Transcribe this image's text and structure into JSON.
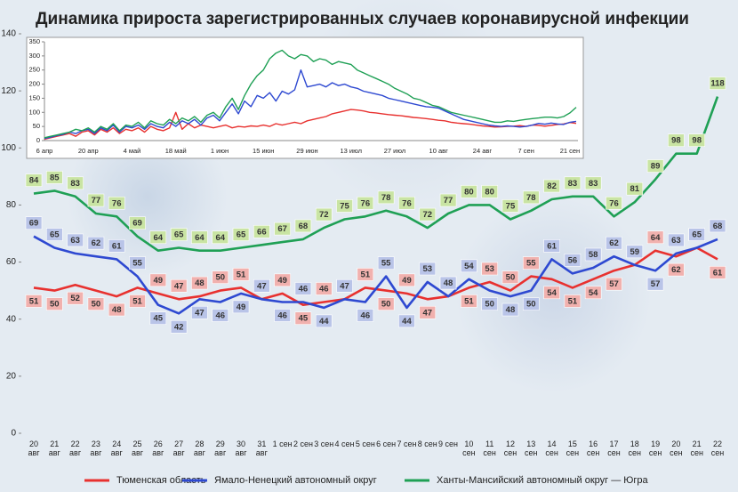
{
  "chart_data": [
    {
      "type": "line",
      "title": "Динамика прироста зарегистрированных случаев коронавирусной инфекции",
      "categories": [
        "20 авг",
        "21 авг",
        "22 авг",
        "23 авг",
        "24 авг",
        "25 авг",
        "26 авг",
        "27 авг",
        "28 авг",
        "29 авг",
        "30 авг",
        "31 авг",
        "1 сен",
        "2 сен",
        "3 сен",
        "4 сен",
        "5 сен",
        "6 сен",
        "7 сен",
        "8 сен",
        "9 сен",
        "10 сен",
        "11 сен",
        "12 сен",
        "13 сен",
        "14 сен",
        "15 сен",
        "16 сен",
        "17 сен",
        "18 сен",
        "19 сен",
        "20 сен",
        "21 сен",
        "22 сен"
      ],
      "series": [
        {
          "name": "Тюменская область",
          "color": "#e8312f",
          "label_color": "#f1b1ae",
          "values": [
            51,
            50,
            52,
            50,
            48,
            51,
            49,
            47,
            48,
            50,
            51,
            47,
            49,
            45,
            46,
            47,
            51,
            50,
            49,
            47,
            48,
            51,
            53,
            50,
            55,
            54,
            51,
            54,
            57,
            59,
            64,
            62,
            65,
            61
          ]
        },
        {
          "name": "Ямало-Ненецкий автономный округ",
          "color": "#2e49d1",
          "label_color": "#b9c4e8",
          "values": [
            69,
            65,
            63,
            62,
            61,
            55,
            45,
            42,
            47,
            46,
            49,
            47,
            46,
            46,
            44,
            47,
            46,
            55,
            44,
            53,
            48,
            54,
            50,
            48,
            50,
            61,
            56,
            58,
            62,
            59,
            57,
            63,
            65,
            68
          ]
        },
        {
          "name": "Ханты-Мансийский автономный округ — Югра",
          "color": "#1fa055",
          "label_color": "#c9e4a3",
          "values": [
            84,
            85,
            83,
            77,
            76,
            69,
            64,
            65,
            64,
            64,
            65,
            66,
            67,
            68,
            72,
            75,
            76,
            78,
            76,
            72,
            77,
            80,
            80,
            75,
            78,
            82,
            83,
            83,
            76,
            81,
            89,
            98,
            98,
            118
          ]
        }
      ],
      "ylim": [
        0,
        140
      ],
      "yticks": [
        0,
        20,
        40,
        60,
        80,
        100,
        120,
        140
      ],
      "data_labels": true,
      "grid": false,
      "legend": "bottom"
    },
    {
      "type": "line",
      "categories": [
        "6 апр",
        null,
        null,
        null,
        null,
        null,
        null,
        "20 апр",
        null,
        null,
        null,
        null,
        null,
        null,
        "4 май",
        null,
        null,
        null,
        null,
        null,
        null,
        "18 май",
        null,
        null,
        null,
        null,
        null,
        null,
        "1 июн",
        null,
        null,
        null,
        null,
        null,
        null,
        "15 июн",
        null,
        null,
        null,
        null,
        null,
        null,
        "29 июн",
        null,
        null,
        null,
        null,
        null,
        null,
        "13 июл",
        null,
        null,
        null,
        null,
        null,
        null,
        "27 июл",
        null,
        null,
        null,
        null,
        null,
        null,
        "10 авг",
        null,
        null,
        null,
        null,
        null,
        null,
        "24 авг",
        null,
        null,
        null,
        null,
        null,
        null,
        "7 сен",
        null,
        null,
        null,
        null,
        null,
        null,
        "21 сен",
        null
      ],
      "series": [
        {
          "color": "#e8312f",
          "values": [
            5,
            10,
            15,
            20,
            25,
            15,
            30,
            35,
            20,
            40,
            30,
            45,
            25,
            40,
            35,
            45,
            30,
            50,
            40,
            35,
            45,
            100,
            40,
            60,
            45,
            55,
            50,
            45,
            50,
            55,
            45,
            50,
            48,
            52,
            50,
            55,
            50,
            60,
            55,
            60,
            65,
            60,
            70,
            75,
            80,
            85,
            95,
            100,
            105,
            110,
            108,
            105,
            100,
            98,
            95,
            92,
            90,
            88,
            85,
            82,
            80,
            78,
            75,
            72,
            70,
            65,
            62,
            60,
            58,
            55,
            52,
            50,
            48,
            49,
            50,
            51,
            53,
            50,
            55,
            54,
            51,
            54,
            57,
            59,
            64,
            61
          ]
        },
        {
          "color": "#2e49d1",
          "values": [
            8,
            12,
            18,
            22,
            30,
            25,
            35,
            40,
            25,
            45,
            35,
            55,
            30,
            50,
            45,
            55,
            40,
            60,
            50,
            45,
            65,
            50,
            70,
            60,
            75,
            55,
            80,
            90,
            70,
            100,
            130,
            95,
            140,
            120,
            160,
            150,
            170,
            140,
            175,
            165,
            180,
            250,
            190,
            195,
            200,
            190,
            205,
            195,
            200,
            190,
            185,
            175,
            170,
            165,
            160,
            150,
            145,
            140,
            135,
            130,
            125,
            120,
            118,
            115,
            105,
            95,
            85,
            75,
            70,
            65,
            60,
            55,
            52,
            50,
            52,
            50,
            48,
            50,
            55,
            61,
            58,
            62,
            59,
            57,
            65,
            68
          ]
        },
        {
          "color": "#1fa055",
          "values": [
            10,
            15,
            20,
            25,
            30,
            40,
            35,
            45,
            30,
            50,
            40,
            60,
            35,
            55,
            50,
            65,
            45,
            70,
            60,
            55,
            75,
            60,
            80,
            70,
            85,
            65,
            90,
            100,
            80,
            120,
            150,
            110,
            160,
            200,
            230,
            250,
            290,
            310,
            320,
            300,
            290,
            305,
            300,
            280,
            290,
            285,
            270,
            280,
            275,
            270,
            250,
            240,
            230,
            220,
            210,
            200,
            185,
            175,
            165,
            150,
            145,
            135,
            125,
            120,
            110,
            100,
            95,
            90,
            85,
            80,
            75,
            70,
            65,
            65,
            70,
            68,
            72,
            75,
            78,
            80,
            83,
            83,
            80,
            85,
            98,
            118
          ]
        }
      ],
      "ylim": [
        0,
        350
      ],
      "yticks": [
        0,
        50,
        100,
        150,
        200,
        250,
        300,
        350
      ]
    }
  ]
}
